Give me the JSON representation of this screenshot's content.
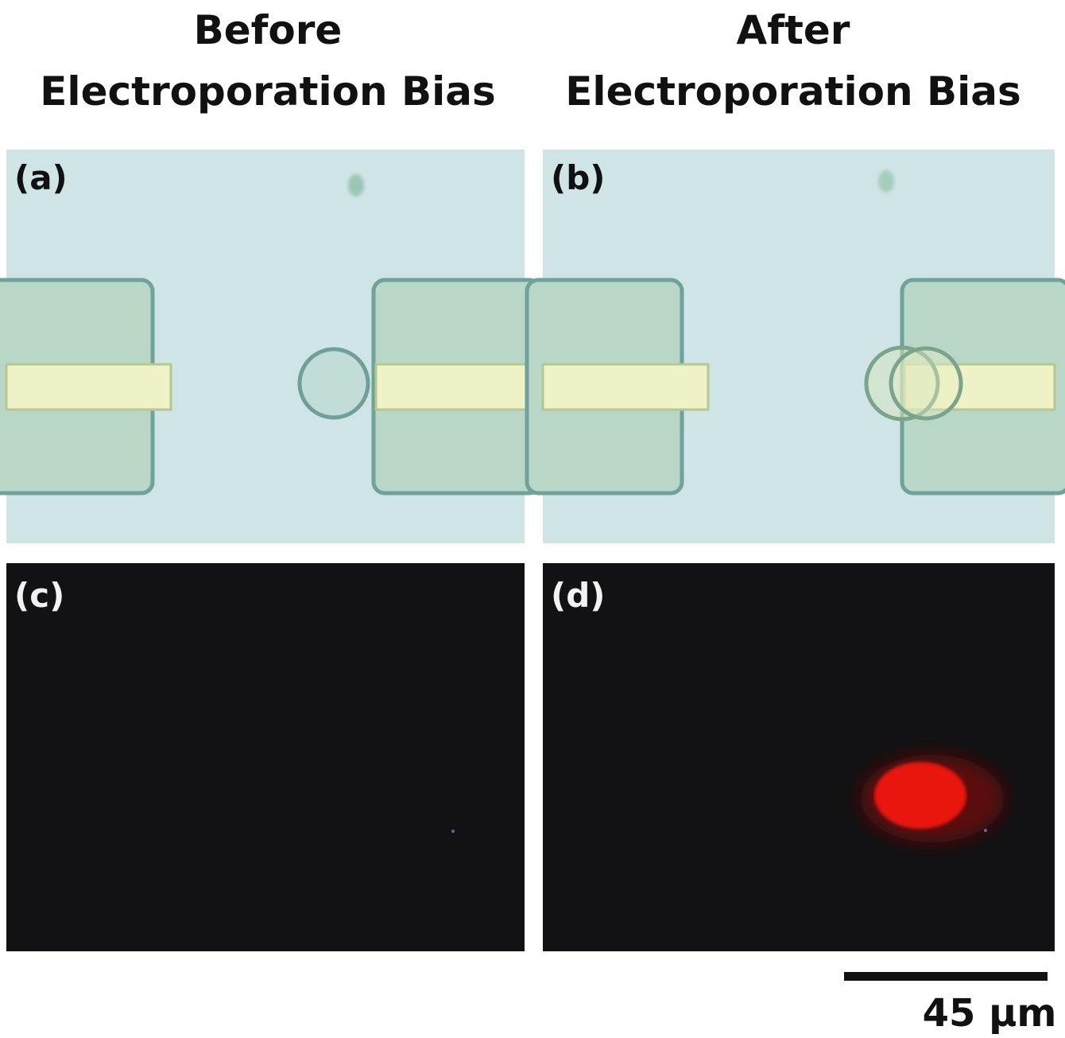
{
  "columns": [
    {
      "title": [
        "Before",
        "Electroporation Bias"
      ]
    },
    {
      "title": [
        "After",
        "Electroporation Bias"
      ]
    }
  ],
  "panels": [
    {
      "label": "(a)"
    },
    {
      "label": "(b)"
    },
    {
      "label": "(c)"
    },
    {
      "label": "(d)"
    }
  ],
  "scale_bar": {
    "label": "45 µm"
  }
}
